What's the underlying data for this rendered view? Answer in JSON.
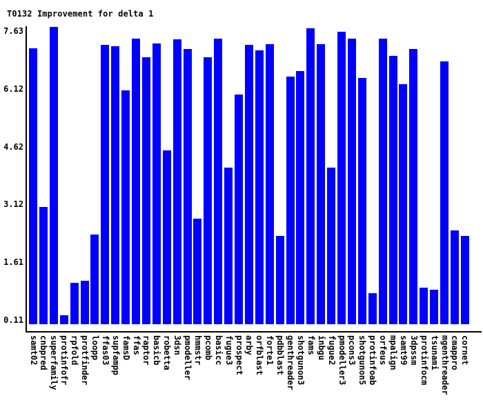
{
  "title": "T0132 Improvement for delta 1",
  "chart_data": {
    "type": "bar",
    "title": "T0132 Improvement for delta 1",
    "xlabel": "",
    "ylabel": "",
    "ylim": [
      0,
      7.8
    ],
    "y_ticks": [
      7.63,
      6.12,
      4.62,
      3.12,
      1.61,
      0.11
    ],
    "grid": false,
    "legend": "none",
    "bar_color": "#0000ff",
    "axis_color": "#000000",
    "background_color": "#ffffff",
    "categories": [
      "samt02",
      "cnbpred",
      "superfamily",
      "protinfofr",
      "rpfold",
      "protfinder",
      "loopp",
      "ffas03",
      "supfampp",
      "famsD",
      "ffas",
      "raptor",
      "basicb",
      "robetta",
      "3dsn",
      "pmodeller",
      "hmmstr",
      "pcomb",
      "basicc",
      "fugue3",
      "prospect",
      "arby",
      "orfblast",
      "forte1",
      "pdbblast",
      "genthreader",
      "shotgunon3",
      "fams",
      "inbgu",
      "fugue2",
      "pmodeller3",
      "pcons3",
      "shotgunon5",
      "protinfoab",
      "orfeus",
      "mpalign",
      "samt99",
      "3dpssm",
      "protinfocm",
      "tsunami",
      "mgenthreader",
      "cmappro",
      "cornet"
    ],
    "values": [
      7.18,
      3.06,
      7.74,
      0.24,
      1.07,
      1.13,
      2.33,
      7.27,
      7.23,
      6.09,
      7.44,
      6.95,
      7.31,
      4.52,
      7.41,
      7.16,
      2.75,
      6.95,
      7.44,
      4.08,
      5.97,
      7.28,
      7.12,
      7.29,
      2.29,
      6.44,
      6.59,
      7.7,
      7.29,
      4.08,
      7.61,
      7.43,
      6.41,
      0.8,
      7.43,
      6.99,
      6.24,
      7.17,
      0.96,
      0.9,
      6.84,
      2.44,
      2.29
    ]
  }
}
